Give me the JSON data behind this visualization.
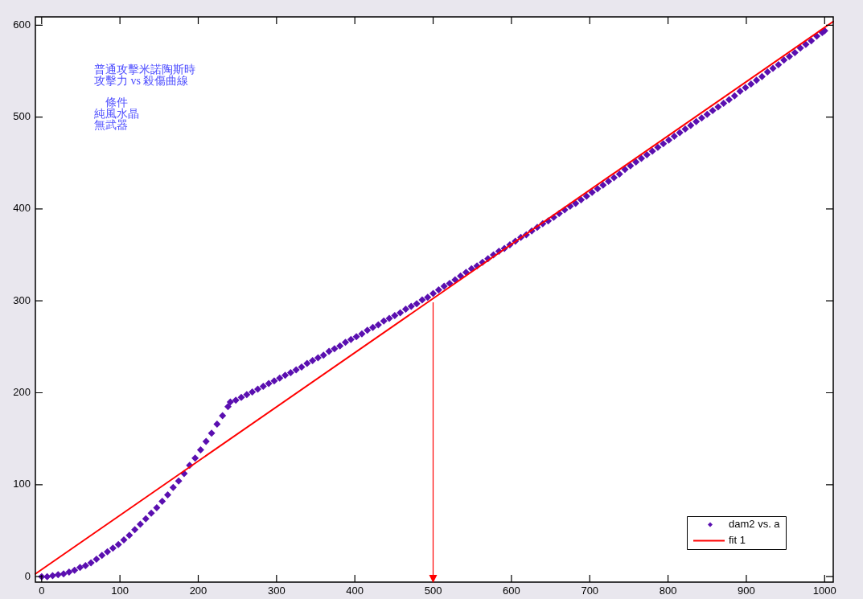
{
  "chart_data": {
    "type": "scatter",
    "annotations": [
      "普通攻擊米諾陶斯時",
      "攻擊力 vs 殺傷曲線",
      "條件",
      "純風水晶",
      "無武器"
    ],
    "xlim": [
      -8,
      1011
    ],
    "ylim": [
      -6,
      609
    ],
    "xticks": [
      0,
      100,
      200,
      300,
      400,
      500,
      600,
      700,
      800,
      900,
      1000
    ],
    "yticks": [
      0,
      100,
      200,
      300,
      400,
      500,
      600
    ],
    "legend": "bottom right",
    "series": [
      {
        "name": "dam2 vs. a",
        "marker": "diamond",
        "color": "#5a0fb0",
        "x": [
          0,
          7,
          14,
          21,
          28,
          35,
          42,
          49,
          56,
          63,
          70,
          77,
          84,
          91,
          98,
          105,
          112,
          119,
          126,
          133,
          140,
          147,
          154,
          161,
          168,
          175,
          182,
          189,
          196,
          203,
          210,
          217,
          224,
          231,
          238,
          241,
          248,
          255,
          262,
          269,
          276,
          283,
          290,
          297,
          304,
          311,
          318,
          325,
          332,
          339,
          346,
          353,
          360,
          367,
          374,
          381,
          388,
          395,
          402,
          409,
          416,
          423,
          430,
          437,
          444,
          451,
          458,
          465,
          472,
          479,
          486,
          493,
          500,
          507,
          514,
          521,
          528,
          535,
          542,
          549,
          556,
          563,
          570,
          577,
          584,
          591,
          598,
          605,
          612,
          619,
          626,
          633,
          640,
          647,
          654,
          661,
          668,
          675,
          682,
          689,
          696,
          703,
          710,
          717,
          724,
          731,
          738,
          745,
          752,
          759,
          766,
          773,
          780,
          787,
          794,
          801,
          808,
          815,
          822,
          829,
          836,
          843,
          850,
          857,
          864,
          871,
          878,
          885,
          892,
          899,
          906,
          913,
          920,
          927,
          934,
          941,
          948,
          955,
          962,
          969,
          976,
          983,
          990,
          997,
          1000
        ],
        "values": [
          0,
          0,
          1,
          2,
          3,
          5,
          7,
          10,
          12,
          15,
          19,
          23,
          27,
          31,
          35,
          40,
          45,
          51,
          57,
          63,
          69,
          75,
          82,
          89,
          97,
          104,
          112,
          121,
          129,
          138,
          147,
          156,
          166,
          175,
          185,
          190,
          192,
          195,
          198,
          201,
          204,
          207,
          210,
          213,
          216,
          219,
          222,
          225,
          228,
          232,
          235,
          238,
          241,
          245,
          248,
          251,
          255,
          258,
          261,
          264,
          268,
          271,
          274,
          278,
          281,
          284,
          287,
          291,
          294,
          297,
          301,
          304,
          308,
          312,
          316,
          319,
          323,
          327,
          331,
          335,
          338,
          342,
          346,
          350,
          354,
          357,
          361,
          365,
          369,
          372,
          376,
          380,
          384,
          387,
          391,
          395,
          399,
          403,
          406,
          410,
          414,
          418,
          422,
          426,
          430,
          434,
          438,
          443,
          447,
          451,
          455,
          459,
          463,
          467,
          471,
          475,
          479,
          483,
          487,
          491,
          495,
          499,
          503,
          507,
          511,
          515,
          519,
          523,
          528,
          532,
          536,
          540,
          544,
          549,
          553,
          557,
          562,
          566,
          570,
          575,
          579,
          583,
          588,
          592,
          594
        ]
      },
      {
        "name": "fit 1",
        "type": "line",
        "marker": "none",
        "color": "#ff0000",
        "x": [
          -8,
          1011
        ],
        "values": [
          3,
          604
        ]
      }
    ]
  }
}
